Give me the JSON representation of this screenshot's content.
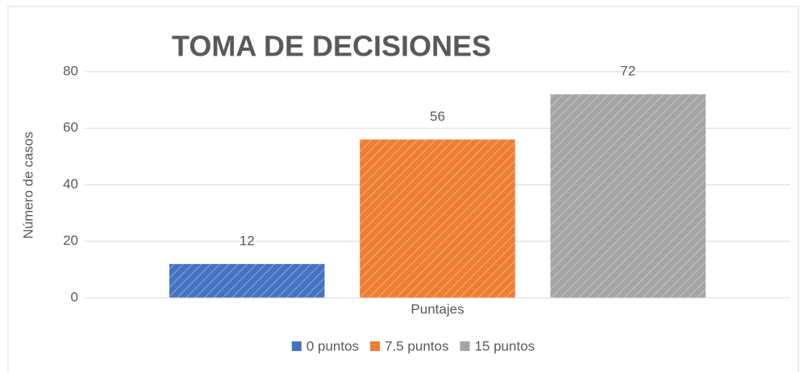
{
  "chart_data": {
    "type": "bar",
    "title": "TOMA DE DECISIONES",
    "ylabel": "Número de casos",
    "categories": [
      "Puntajes"
    ],
    "series": [
      {
        "name": "0 puntos",
        "color": "#4472c4",
        "values": [
          12
        ]
      },
      {
        "name": "7.5 puntos",
        "color": "#ed7d31",
        "values": [
          56
        ]
      },
      {
        "name": "15 puntos",
        "color": "#a5a5a5",
        "values": [
          72
        ]
      }
    ],
    "ylim": [
      0,
      80
    ],
    "yticks": [
      0,
      20,
      40,
      60,
      80
    ],
    "grid": true,
    "legend": "bottom"
  }
}
